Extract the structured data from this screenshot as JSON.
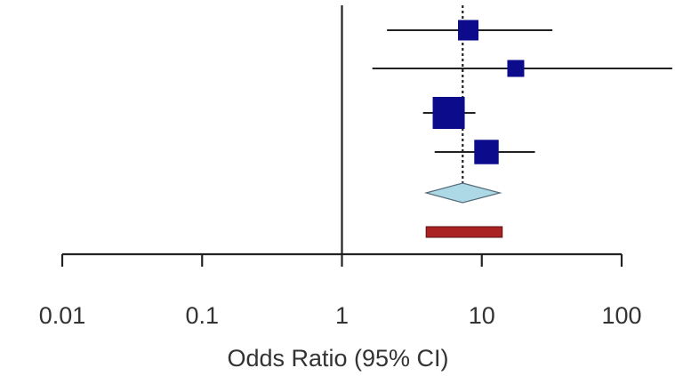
{
  "chart_data": {
    "type": "forest",
    "x_scale": "log",
    "xlabel": "Odds Ratio (95% CI)",
    "xlim": [
      0.01,
      100
    ],
    "x_ticks": [
      {
        "value": 0.01,
        "label": "0.01"
      },
      {
        "value": 0.1,
        "label": "0.1"
      },
      {
        "value": 1,
        "label": "1"
      },
      {
        "value": 10,
        "label": "10"
      },
      {
        "value": 100,
        "label": "100"
      }
    ],
    "reference_line": 1,
    "pooled_reference_line": 7.3,
    "studies": [
      {
        "estimate": 8.0,
        "ci_lower": 2.1,
        "ci_upper": 32,
        "weight": 0.25
      },
      {
        "estimate": 17.5,
        "ci_lower": 1.65,
        "ci_upper": 230,
        "weight": 0.12
      },
      {
        "estimate": 5.8,
        "ci_lower": 3.8,
        "ci_upper": 9.0,
        "weight": 1.0
      },
      {
        "estimate": 10.8,
        "ci_lower": 4.6,
        "ci_upper": 24,
        "weight": 0.45
      }
    ],
    "pooled": {
      "estimate": 7.3,
      "ci_lower": 4.0,
      "ci_upper": 13.5
    },
    "prediction_interval": {
      "ci_lower": 4.0,
      "ci_upper": 14.0
    },
    "colors": {
      "study_marker": "#0b0b8c",
      "pooled_diamond": "#add8e6",
      "prediction_bar": "#aa2222",
      "lines": "#222222"
    }
  }
}
